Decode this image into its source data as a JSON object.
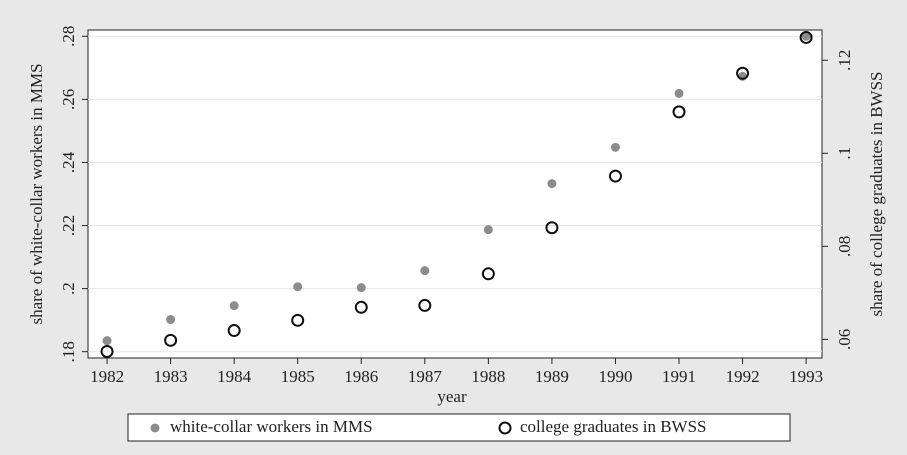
{
  "chart_data": {
    "type": "scatter",
    "x_label": "year",
    "y_label": "share of white-collar workers in MMS",
    "y2_label": "share of college graduates in BWSS",
    "x": [
      1982,
      1983,
      1984,
      1985,
      1986,
      1987,
      1988,
      1989,
      1990,
      1991,
      1992,
      1993
    ],
    "series": [
      {
        "name": "white-collar workers in MMS",
        "color": "#8c8c8c",
        "marker": "filled",
        "values": [
          0.1835,
          0.1902,
          0.1946,
          0.2006,
          0.2003,
          0.2057,
          0.2187,
          0.2333,
          0.2448,
          0.2619,
          0.2673,
          0.28
        ]
      },
      {
        "name": "college graduates in BWSS",
        "color": "#111111",
        "marker": "hollow",
        "axis": "y2",
        "values": [
          0.0574,
          0.0598,
          0.0619,
          0.0641,
          0.0669,
          0.0673,
          0.0741,
          0.084,
          0.0951,
          0.1089,
          0.1172,
          0.1249
        ]
      }
    ],
    "xlim": [
      1981.7,
      1993.25
    ],
    "xticks": [
      1982,
      1983,
      1984,
      1985,
      1986,
      1987,
      1988,
      1989,
      1990,
      1991,
      1992,
      1993
    ],
    "ylim": [
      0.178,
      0.282
    ],
    "yticks": [
      {
        "value": 0.18,
        "label": ".18"
      },
      {
        "value": 0.2,
        "label": ".2"
      },
      {
        "value": 0.22,
        "label": ".22"
      },
      {
        "value": 0.24,
        "label": ".24"
      },
      {
        "value": 0.26,
        "label": ".26"
      },
      {
        "value": 0.28,
        "label": ".28"
      }
    ],
    "y2lim": [
      0.056,
      0.1265
    ],
    "y2ticks": [
      {
        "value": 0.06,
        "label": ".06"
      },
      {
        "value": 0.08,
        "label": ".08"
      },
      {
        "value": 0.1,
        "label": ".1"
      },
      {
        "value": 0.12,
        "label": ".12"
      }
    ],
    "grid": true,
    "legend": "bottom"
  }
}
